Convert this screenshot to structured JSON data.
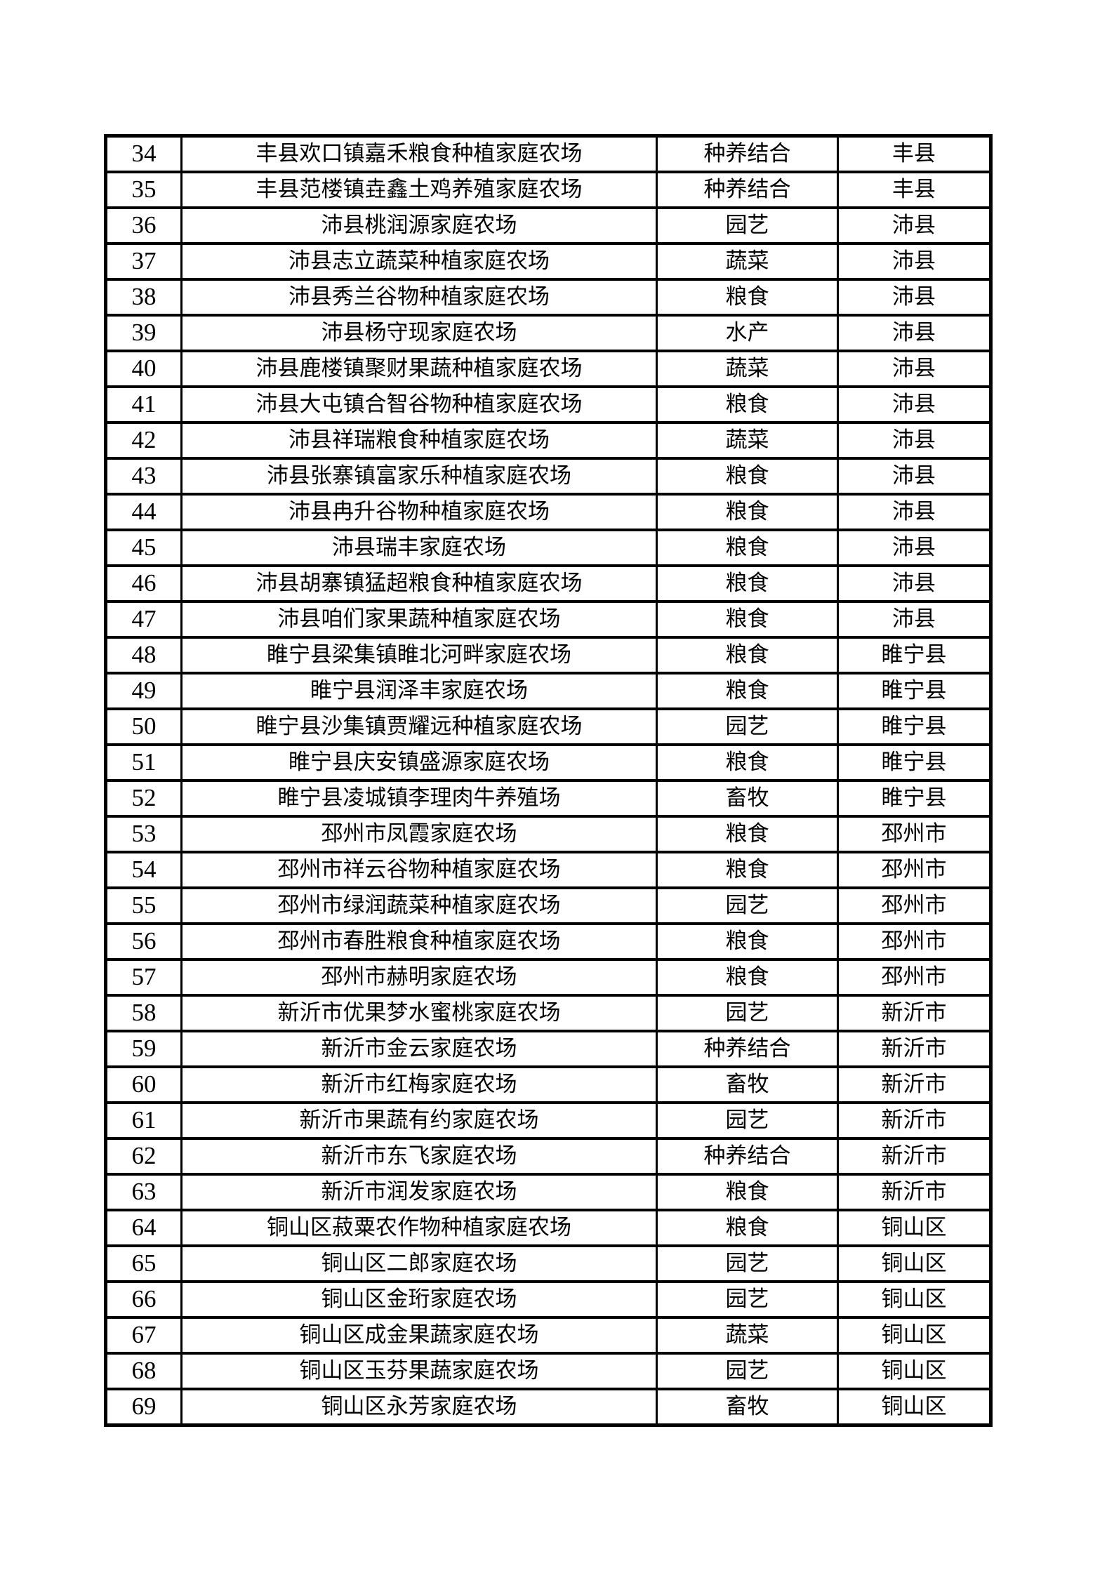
{
  "page": {
    "background_color": "#ffffff",
    "text_color": "#000000",
    "description": "continuation page of a numbered list table of family farms"
  },
  "table": {
    "columns": [
      "no",
      "name",
      "type",
      "county"
    ],
    "rows": [
      {
        "no": "34",
        "name": "丰县欢口镇嘉禾粮食种植家庭农场",
        "type": "种养结合",
        "county": "丰县"
      },
      {
        "no": "35",
        "name": "丰县范楼镇垚鑫土鸡养殖家庭农场",
        "type": "种养结合",
        "county": "丰县"
      },
      {
        "no": "36",
        "name": "沛县桃润源家庭农场",
        "type": "园艺",
        "county": "沛县"
      },
      {
        "no": "37",
        "name": "沛县志立蔬菜种植家庭农场",
        "type": "蔬菜",
        "county": "沛县"
      },
      {
        "no": "38",
        "name": "沛县秀兰谷物种植家庭农场",
        "type": "粮食",
        "county": "沛县"
      },
      {
        "no": "39",
        "name": "沛县杨守现家庭农场",
        "type": "水产",
        "county": "沛县"
      },
      {
        "no": "40",
        "name": "沛县鹿楼镇聚财果蔬种植家庭农场",
        "type": "蔬菜",
        "county": "沛县"
      },
      {
        "no": "41",
        "name": "沛县大屯镇合智谷物种植家庭农场",
        "type": "粮食",
        "county": "沛县"
      },
      {
        "no": "42",
        "name": "沛县祥瑞粮食种植家庭农场",
        "type": "蔬菜",
        "county": "沛县"
      },
      {
        "no": "43",
        "name": "沛县张寨镇富家乐种植家庭农场",
        "type": "粮食",
        "county": "沛县"
      },
      {
        "no": "44",
        "name": "沛县冉升谷物种植家庭农场",
        "type": "粮食",
        "county": "沛县"
      },
      {
        "no": "45",
        "name": "沛县瑞丰家庭农场",
        "type": "粮食",
        "county": "沛县"
      },
      {
        "no": "46",
        "name": "沛县胡寨镇猛超粮食种植家庭农场",
        "type": "粮食",
        "county": "沛县"
      },
      {
        "no": "47",
        "name": "沛县咱们家果蔬种植家庭农场",
        "type": "粮食",
        "county": "沛县"
      },
      {
        "no": "48",
        "name": "睢宁县梁集镇睢北河畔家庭农场",
        "type": "粮食",
        "county": "睢宁县"
      },
      {
        "no": "49",
        "name": "睢宁县润泽丰家庭农场",
        "type": "粮食",
        "county": "睢宁县"
      },
      {
        "no": "50",
        "name": "睢宁县沙集镇贾耀远种植家庭农场",
        "type": "园艺",
        "county": "睢宁县"
      },
      {
        "no": "51",
        "name": "睢宁县庆安镇盛源家庭农场",
        "type": "粮食",
        "county": "睢宁县"
      },
      {
        "no": "52",
        "name": "睢宁县凌城镇李理肉牛养殖场",
        "type": "畜牧",
        "county": "睢宁县"
      },
      {
        "no": "53",
        "name": "邳州市凤霞家庭农场",
        "type": "粮食",
        "county": "邳州市"
      },
      {
        "no": "54",
        "name": "邳州市祥云谷物种植家庭农场",
        "type": "粮食",
        "county": "邳州市"
      },
      {
        "no": "55",
        "name": "邳州市绿润蔬菜种植家庭农场",
        "type": "园艺",
        "county": "邳州市"
      },
      {
        "no": "56",
        "name": "邳州市春胜粮食种植家庭农场",
        "type": "粮食",
        "county": "邳州市"
      },
      {
        "no": "57",
        "name": "邳州市赫明家庭农场",
        "type": "粮食",
        "county": "邳州市"
      },
      {
        "no": "58",
        "name": "新沂市优果梦水蜜桃家庭农场",
        "type": "园艺",
        "county": "新沂市"
      },
      {
        "no": "59",
        "name": "新沂市金云家庭农场",
        "type": "种养结合",
        "county": "新沂市"
      },
      {
        "no": "60",
        "name": "新沂市红梅家庭农场",
        "type": "畜牧",
        "county": "新沂市"
      },
      {
        "no": "61",
        "name": "新沂市果蔬有约家庭农场",
        "type": "园艺",
        "county": "新沂市"
      },
      {
        "no": "62",
        "name": "新沂市东飞家庭农场",
        "type": "种养结合",
        "county": "新沂市"
      },
      {
        "no": "63",
        "name": "新沂市润发家庭农场",
        "type": "粮食",
        "county": "新沂市"
      },
      {
        "no": "64",
        "name": "铜山区菽粟农作物种植家庭农场",
        "type": "粮食",
        "county": "铜山区"
      },
      {
        "no": "65",
        "name": "铜山区二郎家庭农场",
        "type": "园艺",
        "county": "铜山区"
      },
      {
        "no": "66",
        "name": "铜山区金珩家庭农场",
        "type": "园艺",
        "county": "铜山区"
      },
      {
        "no": "67",
        "name": "铜山区成金果蔬家庭农场",
        "type": "蔬菜",
        "county": "铜山区"
      },
      {
        "no": "68",
        "name": "铜山区玉芬果蔬家庭农场",
        "type": "园艺",
        "county": "铜山区"
      },
      {
        "no": "69",
        "name": "铜山区永芳家庭农场",
        "type": "畜牧",
        "county": "铜山区"
      }
    ]
  }
}
